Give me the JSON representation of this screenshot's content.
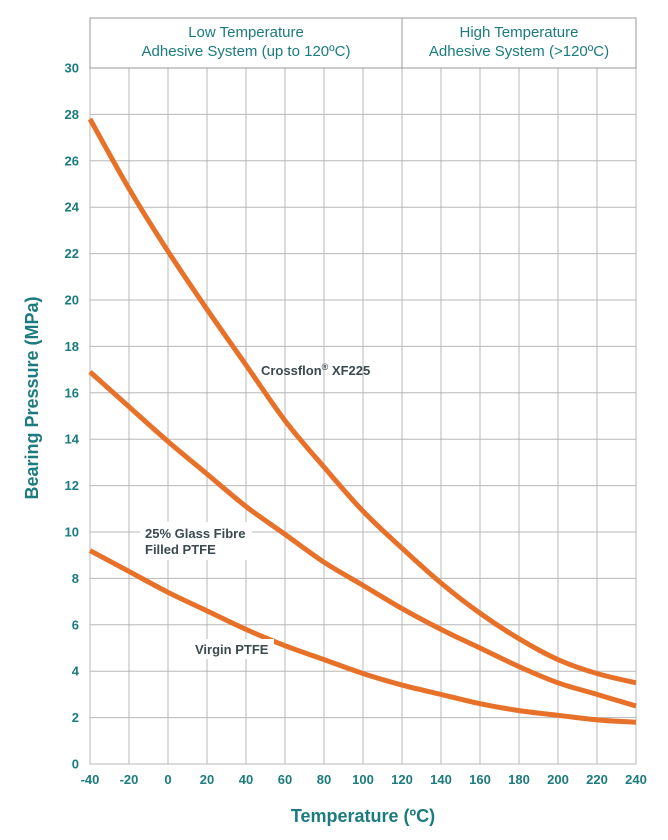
{
  "colors": {
    "accent": "#1B7B7E",
    "curve": "#E8712A",
    "grid": "#B8B8B8",
    "label_text": "#3A4A4F",
    "border": "#9A9A9A"
  },
  "chart_data": {
    "type": "line",
    "title": "",
    "xlabel": "Temperature  (ºC)",
    "ylabel": "Bearing Pressure  (MPa)",
    "xlim": [
      -40,
      240
    ],
    "ylim": [
      0,
      30
    ],
    "x_ticks": [
      "-40",
      "-20",
      "0",
      "20",
      "40",
      "60",
      "80",
      "100",
      "120",
      "140",
      "160",
      "180",
      "200",
      "220",
      "240"
    ],
    "y_ticks": [
      "0",
      "2",
      "4",
      "6",
      "8",
      "10",
      "12",
      "14",
      "16",
      "18",
      "20",
      "22",
      "24",
      "26",
      "28",
      "30"
    ],
    "grid": true,
    "regions": [
      {
        "range": [
          -40,
          120
        ],
        "line1": "Low Temperature",
        "line2": "Adhesive System (up to 120ºC)"
      },
      {
        "range": [
          120,
          240
        ],
        "line1": "High Temperature",
        "line2": "Adhesive System (>120ºC)"
      }
    ],
    "x": [
      -40,
      -20,
      0,
      20,
      40,
      60,
      80,
      100,
      120,
      140,
      160,
      180,
      200,
      220,
      240
    ],
    "series": [
      {
        "name": "Crossflon® XF225",
        "label_main": "Crossflon",
        "label_sup": "®",
        "label_rest": " XF225",
        "values": [
          27.8,
          24.8,
          22.1,
          19.6,
          17.2,
          14.8,
          12.8,
          10.9,
          9.3,
          7.8,
          6.5,
          5.4,
          4.5,
          3.9,
          3.5
        ]
      },
      {
        "name": "25% Glass Fibre Filled PTFE",
        "label_line1": "25% Glass Fibre",
        "label_line2": "Filled PTFE",
        "values": [
          16.9,
          15.4,
          13.9,
          12.5,
          11.1,
          9.9,
          8.7,
          7.7,
          6.7,
          5.8,
          5.0,
          4.2,
          3.5,
          3.0,
          2.5
        ]
      },
      {
        "name": "Virgin PTFE",
        "label_line1": "Virgin PTFE",
        "values": [
          9.2,
          8.3,
          7.4,
          6.6,
          5.8,
          5.1,
          4.5,
          3.9,
          3.4,
          3.0,
          2.6,
          2.3,
          2.1,
          1.9,
          1.8
        ]
      }
    ]
  }
}
